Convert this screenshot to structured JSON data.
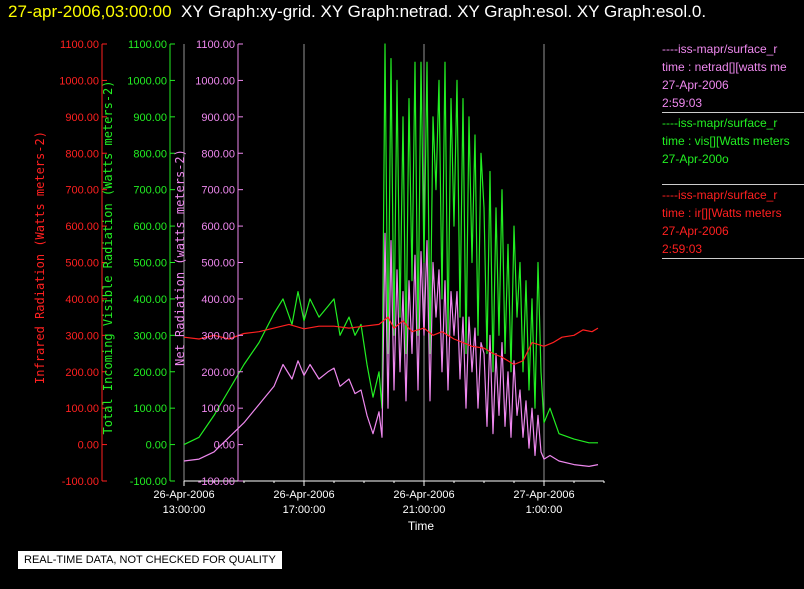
{
  "header": {
    "date": "27-apr-2006,03:00:00",
    "graphs": "XY Graph:xy-grid.  XY Graph:netrad.  XY Graph:esol.  XY Graph:esol.0."
  },
  "colors": {
    "ir": "#ff2020",
    "vis": "#22ee22",
    "net": "#ee88ee",
    "grid": "#bbbbbb",
    "axis": "#ffffff"
  },
  "legend": [
    {
      "color": "#ee88ee",
      "lines": [
        "----iss-mapr/surface_r",
        "time : netrad[][watts me",
        "27-Apr-2006",
        "2:59:03"
      ]
    },
    {
      "color": "#22ee22",
      "lines": [
        "----iss-mapr/surface_r",
        "time : vis[][Watts meters",
        "27-Apr-200o"
      ]
    },
    {
      "color": "#ff2020",
      "lines": [
        "----iss-mapr/surface_r",
        "time : ir[][Watts meters",
        "27-Apr-2006",
        "2:59:03"
      ]
    }
  ],
  "quality_note": "REAL-TIME DATA, NOT CHECKED FOR QUALITY",
  "chart_data": {
    "type": "line",
    "xlabel": "Time",
    "x_ticks": [
      {
        "hour": 13,
        "date": "26-Apr-2006",
        "time": "13:00:00"
      },
      {
        "hour": 17,
        "date": "26-Apr-2006",
        "time": "17:00:00"
      },
      {
        "hour": 21,
        "date": "26-Apr-2006",
        "time": "21:00:00"
      },
      {
        "hour": 25,
        "date": "27-Apr-2006",
        "time": "1:00:00"
      }
    ],
    "xlim": [
      13,
      27
    ],
    "grid": true,
    "y_axes": [
      {
        "id": "ir",
        "label": "Infrared Radiation (Watts meters-2)",
        "color": "#ff2020",
        "ylim": [
          -100,
          1100
        ],
        "ticks": [
          "1100.00",
          "1000.00",
          "900.00",
          "800.00",
          "700.00",
          "600.00",
          "500.00",
          "400.00",
          "300.00",
          "200.00",
          "100.00",
          "0.00",
          "-100.00"
        ]
      },
      {
        "id": "vis",
        "label": "Total Incoming Visible Radiation (Watts meters-2)",
        "color": "#22ee22",
        "ylim": [
          -100,
          1100
        ],
        "ticks": [
          "1100.00",
          "1000.00",
          "900.00",
          "800.00",
          "700.00",
          "600.00",
          "500.00",
          "400.00",
          "300.00",
          "200.00",
          "100.00",
          "0.00",
          "-100.00"
        ]
      },
      {
        "id": "net",
        "label": "Net Radiation (watts meters-2)",
        "color": "#ee88ee",
        "ylim": [
          -100,
          1100
        ],
        "ticks": [
          "1100.00",
          "1000.00",
          "900.00",
          "800.00",
          "700.00",
          "600.00",
          "500.00",
          "400.00",
          "300.00",
          "200.00",
          "100.00",
          "0.00",
          "-100.00"
        ]
      }
    ],
    "series": [
      {
        "name": "vis",
        "color": "#22ee22",
        "x": [
          13.0,
          13.5,
          14.0,
          14.5,
          15.0,
          15.5,
          16.0,
          16.3,
          16.6,
          16.8,
          17.0,
          17.2,
          17.5,
          17.8,
          18.0,
          18.2,
          18.5,
          18.7,
          18.9,
          19.1,
          19.3,
          19.5,
          19.6,
          19.7,
          19.8,
          19.9,
          20.0,
          20.1,
          20.2,
          20.3,
          20.4,
          20.5,
          20.6,
          20.7,
          20.8,
          20.9,
          21.0,
          21.1,
          21.2,
          21.3,
          21.4,
          21.5,
          21.6,
          21.7,
          21.8,
          21.9,
          22.0,
          22.1,
          22.2,
          22.3,
          22.4,
          22.5,
          22.6,
          22.7,
          22.8,
          22.9,
          23.0,
          23.1,
          23.2,
          23.3,
          23.4,
          23.5,
          23.6,
          23.7,
          23.8,
          23.9,
          24.0,
          24.1,
          24.2,
          24.3,
          24.4,
          24.5,
          24.6,
          24.7,
          24.8,
          24.9,
          25.0,
          25.2,
          25.5,
          26.0,
          26.5,
          26.8
        ],
        "y": [
          0,
          20,
          80,
          150,
          220,
          280,
          360,
          400,
          330,
          420,
          340,
          400,
          350,
          380,
          400,
          300,
          350,
          300,
          330,
          220,
          130,
          200,
          100,
          1100,
          250,
          1060,
          300,
          1000,
          350,
          900,
          250,
          950,
          450,
          1050,
          300,
          1050,
          500,
          1050,
          250,
          900,
          700,
          1000,
          400,
          1050,
          300,
          950,
          600,
          1000,
          350,
          950,
          250,
          900,
          500,
          850,
          300,
          800,
          650,
          250,
          750,
          200,
          650,
          300,
          700,
          250,
          550,
          200,
          600,
          350,
          500,
          200,
          450,
          150,
          400,
          100,
          500,
          200,
          60,
          100,
          30,
          15,
          5,
          5
        ]
      },
      {
        "name": "net",
        "color": "#ee88ee",
        "x": [
          13.0,
          13.5,
          14.0,
          14.5,
          15.0,
          15.5,
          16.0,
          16.3,
          16.6,
          16.8,
          17.0,
          17.2,
          17.5,
          17.8,
          18.0,
          18.2,
          18.5,
          18.7,
          18.9,
          19.1,
          19.3,
          19.5,
          19.6,
          19.7,
          19.8,
          19.9,
          20.0,
          20.1,
          20.2,
          20.3,
          20.4,
          20.5,
          20.6,
          20.7,
          20.8,
          20.9,
          21.0,
          21.1,
          21.2,
          21.3,
          21.4,
          21.5,
          21.6,
          21.7,
          21.8,
          21.9,
          22.0,
          22.1,
          22.2,
          22.3,
          22.4,
          22.5,
          22.6,
          22.7,
          22.8,
          22.9,
          23.0,
          23.1,
          23.2,
          23.3,
          23.4,
          23.5,
          23.6,
          23.7,
          23.8,
          23.9,
          24.0,
          24.1,
          24.2,
          24.3,
          24.4,
          24.5,
          24.6,
          24.7,
          24.8,
          24.9,
          25.0,
          25.2,
          25.5,
          26.0,
          26.5,
          26.8
        ],
        "y": [
          -45,
          -40,
          -20,
          20,
          60,
          110,
          160,
          220,
          180,
          230,
          190,
          220,
          180,
          200,
          210,
          160,
          180,
          140,
          150,
          80,
          30,
          90,
          20,
          580,
          100,
          560,
          150,
          480,
          200,
          420,
          120,
          450,
          250,
          520,
          150,
          530,
          300,
          560,
          120,
          500,
          350,
          480,
          200,
          450,
          150,
          420,
          300,
          420,
          180,
          350,
          100,
          350,
          200,
          320,
          100,
          280,
          250,
          50,
          300,
          30,
          250,
          80,
          280,
          50,
          200,
          20,
          230,
          80,
          150,
          20,
          120,
          -10,
          100,
          -30,
          80,
          -20,
          -40,
          -30,
          -45,
          -55,
          -60,
          -55
        ]
      },
      {
        "name": "ir",
        "color": "#ff2020",
        "x": [
          13.0,
          13.5,
          14.0,
          14.5,
          15.0,
          15.5,
          16.0,
          16.5,
          17.0,
          17.5,
          18.0,
          18.5,
          19.0,
          19.5,
          19.8,
          20.0,
          20.3,
          20.6,
          21.0,
          21.3,
          21.6,
          22.0,
          22.3,
          22.6,
          23.0,
          23.3,
          23.6,
          24.0,
          24.3,
          24.6,
          25.0,
          25.3,
          25.6,
          26.0,
          26.3,
          26.6,
          26.8
        ],
        "y": [
          295,
          290,
          300,
          290,
          305,
          310,
          320,
          330,
          318,
          325,
          325,
          320,
          325,
          330,
          350,
          320,
          340,
          310,
          320,
          300,
          310,
          290,
          280,
          270,
          265,
          250,
          240,
          220,
          230,
          280,
          270,
          280,
          295,
          300,
          315,
          310,
          320
        ]
      }
    ]
  }
}
